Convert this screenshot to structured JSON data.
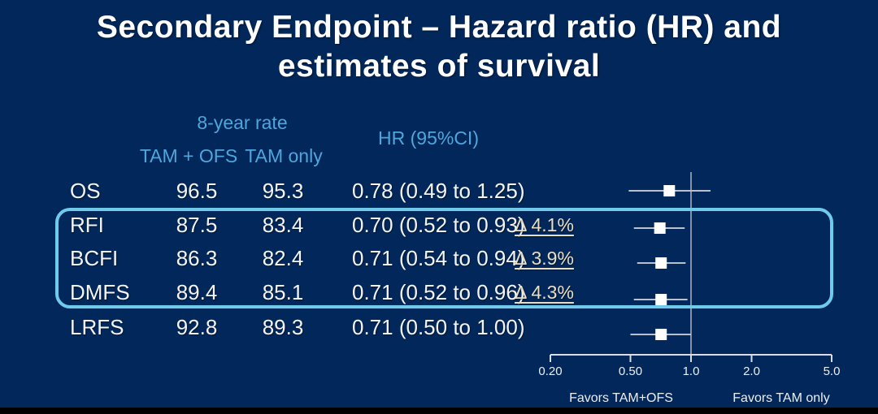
{
  "slide": {
    "title_line1": "Secondary Endpoint – Hazard ratio (HR) and",
    "title_line2": "estimates of survival"
  },
  "table": {
    "header": {
      "rate_group": "8-year rate",
      "col_tam_ofs": "TAM + OFS",
      "col_tam_only": "TAM only",
      "col_hr": "HR (95%CI)"
    },
    "rows": [
      {
        "endpoint": "OS",
        "tam_ofs": "96.5",
        "tam_only": "95.3",
        "hr_text": "0.78 (0.49 to 1.25)",
        "delta": "",
        "highlighted": false
      },
      {
        "endpoint": "RFI",
        "tam_ofs": "87.5",
        "tam_only": "83.4",
        "hr_text": "0.70 (0.52 to 0.93)",
        "delta": "Δ 4.1%",
        "highlighted": true
      },
      {
        "endpoint": "BCFI",
        "tam_ofs": "86.3",
        "tam_only": "82.4",
        "hr_text": "0.71 (0.54 to 0.94)",
        "delta": "Δ 3.9%",
        "highlighted": true
      },
      {
        "endpoint": "DMFS",
        "tam_ofs": "89.4",
        "tam_only": "85.1",
        "hr_text": "0.71 (0.52 to 0.96)",
        "delta": "Δ 4.3%",
        "highlighted": true
      },
      {
        "endpoint": "LRFS",
        "tam_ofs": "92.8",
        "tam_only": "89.3",
        "hr_text": "0.71 (0.50 to 1.00)",
        "delta": "",
        "highlighted": false
      }
    ]
  },
  "chart_data": {
    "type": "scatter",
    "subtype": "forest-plot",
    "scale": "log",
    "xlim": [
      0.2,
      5.0
    ],
    "axis_ticks": [
      0.2,
      0.5,
      1.0,
      2.0,
      5.0
    ],
    "axis_tick_labels": [
      "0.20",
      "0.50",
      "1.0",
      "2.0",
      "5.0"
    ],
    "reference_line": 1.0,
    "series": [
      {
        "name": "OS",
        "hr": 0.78,
        "ci_low": 0.49,
        "ci_high": 1.25
      },
      {
        "name": "RFI",
        "hr": 0.7,
        "ci_low": 0.52,
        "ci_high": 0.93
      },
      {
        "name": "BCFI",
        "hr": 0.71,
        "ci_low": 0.54,
        "ci_high": 0.94
      },
      {
        "name": "DMFS",
        "hr": 0.71,
        "ci_low": 0.52,
        "ci_high": 0.96
      },
      {
        "name": "LRFS",
        "hr": 0.71,
        "ci_low": 0.5,
        "ci_high": 1.0
      }
    ],
    "left_label": "Favors TAM+OFS",
    "right_label": "Favors TAM only",
    "grid": false,
    "legend": false
  },
  "colors": {
    "background": "#02275A",
    "title_text": "#FFFFFF",
    "header_text": "#4FA6DC",
    "body_text": "#F4F4F4",
    "delta_text": "#E8DEC4",
    "highlight_border": "#70CAEA",
    "marker_fill": "#FFFFFF",
    "ci_line": "#B9C2CC",
    "axis_line": "#D9DCE0"
  }
}
